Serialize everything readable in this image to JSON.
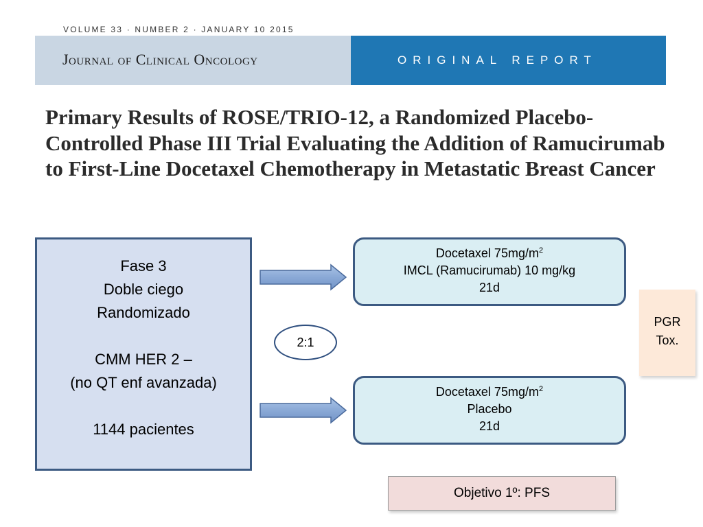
{
  "header": {
    "volume_line": "VOLUME 33 · NUMBER 2 · JANUARY 10 2015",
    "journal_name": "Journal of Clinical Oncology",
    "report_type": "ORIGINAL REPORT",
    "colors": {
      "banner_left": "#c9d6e3",
      "banner_right": "#1f77b4"
    }
  },
  "title": "Primary Results of ROSE/TRIO-12, a Randomized Placebo-Controlled Phase III Trial Evaluating the Addition of Ramucirumab to First-Line Docetaxel Chemotherapy in Metastatic Breast Cancer",
  "design": {
    "phase": "Fase 3",
    "blinding": "Doble ciego",
    "randomization": "Randomizado",
    "population": "CMM HER 2 –",
    "population_note": "(no QT enf avanzada)",
    "patients": "1144 pacientes"
  },
  "ratio": "2:1",
  "arms": [
    {
      "drug_prefix": "Docetaxel 75mg/m",
      "drug_superscript": "2",
      "agent": "IMCL (Ramucirumab) 10 mg/kg",
      "cycle": "21d"
    },
    {
      "drug_prefix": "Docetaxel 75mg/m",
      "drug_superscript": "2",
      "agent": "Placebo",
      "cycle": "21d"
    }
  ],
  "endpoints": {
    "line1": "PGR",
    "line2": "Tox."
  },
  "objective": "Objetivo 1º: PFS"
}
